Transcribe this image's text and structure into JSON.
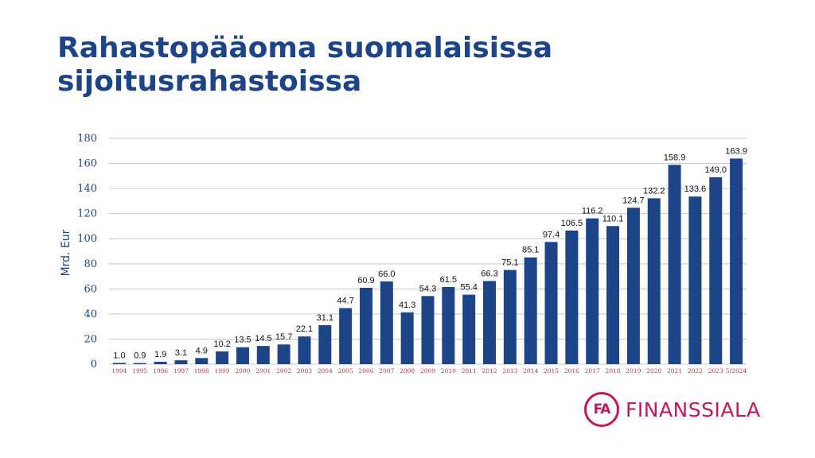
{
  "title": "Rahastopääoma suomalaisissa sijoitusrahastoissa",
  "logo": {
    "mark": "FA",
    "text": "FINANSSIALA"
  },
  "chart_data": {
    "type": "bar",
    "ylabel": "Mrd. Eur",
    "ylim": [
      0,
      180
    ],
    "yticks": [
      0,
      20,
      40,
      60,
      80,
      100,
      120,
      140,
      160,
      180
    ],
    "grid": true,
    "bar_color": "#1d4486",
    "categories": [
      "1994",
      "1995",
      "1996",
      "1997",
      "1998",
      "1999",
      "2000",
      "2001",
      "2002",
      "2003",
      "2004",
      "2005",
      "2006",
      "2007",
      "2008",
      "2009",
      "2010",
      "2011",
      "2012",
      "2013",
      "2014",
      "2015",
      "2016",
      "2017",
      "2018",
      "2019",
      "2020",
      "2021",
      "2022",
      "2023",
      "5/2024"
    ],
    "values": [
      1.0,
      0.9,
      1.9,
      3.1,
      4.9,
      10.2,
      13.5,
      14.5,
      15.7,
      22.1,
      31.1,
      44.7,
      60.9,
      66.0,
      41.3,
      54.3,
      61.5,
      55.4,
      66.3,
      75.1,
      85.1,
      97.4,
      106.5,
      116.2,
      110.1,
      124.7,
      132.2,
      158.9,
      133.6,
      149.0,
      163.9
    ],
    "labels": [
      "1.0",
      "0.9",
      "1.9",
      "3.1",
      "4.9",
      "10.2",
      "13.5",
      "14.5",
      "15.7",
      "22.1",
      "31.1",
      "44.7",
      "60.9",
      "66.0",
      "41.3",
      "54.3",
      "61.5",
      "55.4",
      "66.3",
      "75.1",
      "85.1",
      "97.4",
      "106.5",
      "116.2",
      "110.1",
      "124.7",
      "132.2",
      "158.9",
      "133.6",
      "149.0",
      "163.9"
    ]
  }
}
